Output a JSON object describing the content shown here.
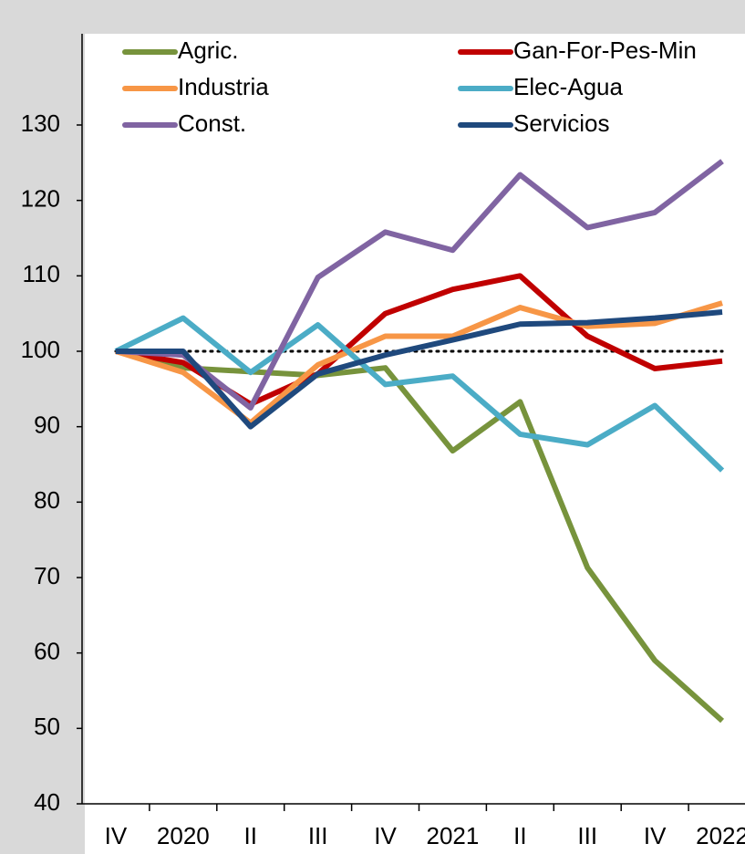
{
  "chart_data": {
    "type": "line",
    "categories": [
      "IV",
      "2020",
      "II",
      "III",
      "IV",
      "2021",
      "II",
      "III",
      "IV",
      "2022"
    ],
    "series": [
      {
        "name": "Agric.",
        "color": "#77933c",
        "values": [
          100,
          97.8,
          97.3,
          96.8,
          97.8,
          86.8,
          93.3,
          71.3,
          59,
          51
        ]
      },
      {
        "name": "Gan-For-Pes-Min",
        "color": "#c00000",
        "values": [
          100,
          98.5,
          93,
          97,
          105,
          108.2,
          110,
          102,
          97.7,
          98.7
        ]
      },
      {
        "name": "Industria",
        "color": "#f79646",
        "values": [
          100,
          97.2,
          90.5,
          98.2,
          102,
          102,
          105.8,
          103.3,
          103.7,
          106.4
        ]
      },
      {
        "name": "Elec-Agua",
        "color": "#4bacc6",
        "values": [
          100,
          104.4,
          97.2,
          103.5,
          95.6,
          96.7,
          89,
          87.6,
          92.8,
          84.2
        ]
      },
      {
        "name": "Const.",
        "color": "#8064a2",
        "values": [
          100,
          99.5,
          92.5,
          109.8,
          115.8,
          113.4,
          123.4,
          116.4,
          118.4,
          125.2
        ]
      },
      {
        "name": "Servicios",
        "color": "#1f497d",
        "values": [
          100,
          100,
          90,
          97,
          99.5,
          101.5,
          103.6,
          103.8,
          104.4,
          105.2
        ]
      }
    ],
    "reference_line": 100,
    "ylim": [
      40,
      130
    ],
    "yticks": [
      40,
      50,
      60,
      70,
      80,
      90,
      100,
      110,
      120,
      130
    ],
    "legend": "top"
  }
}
